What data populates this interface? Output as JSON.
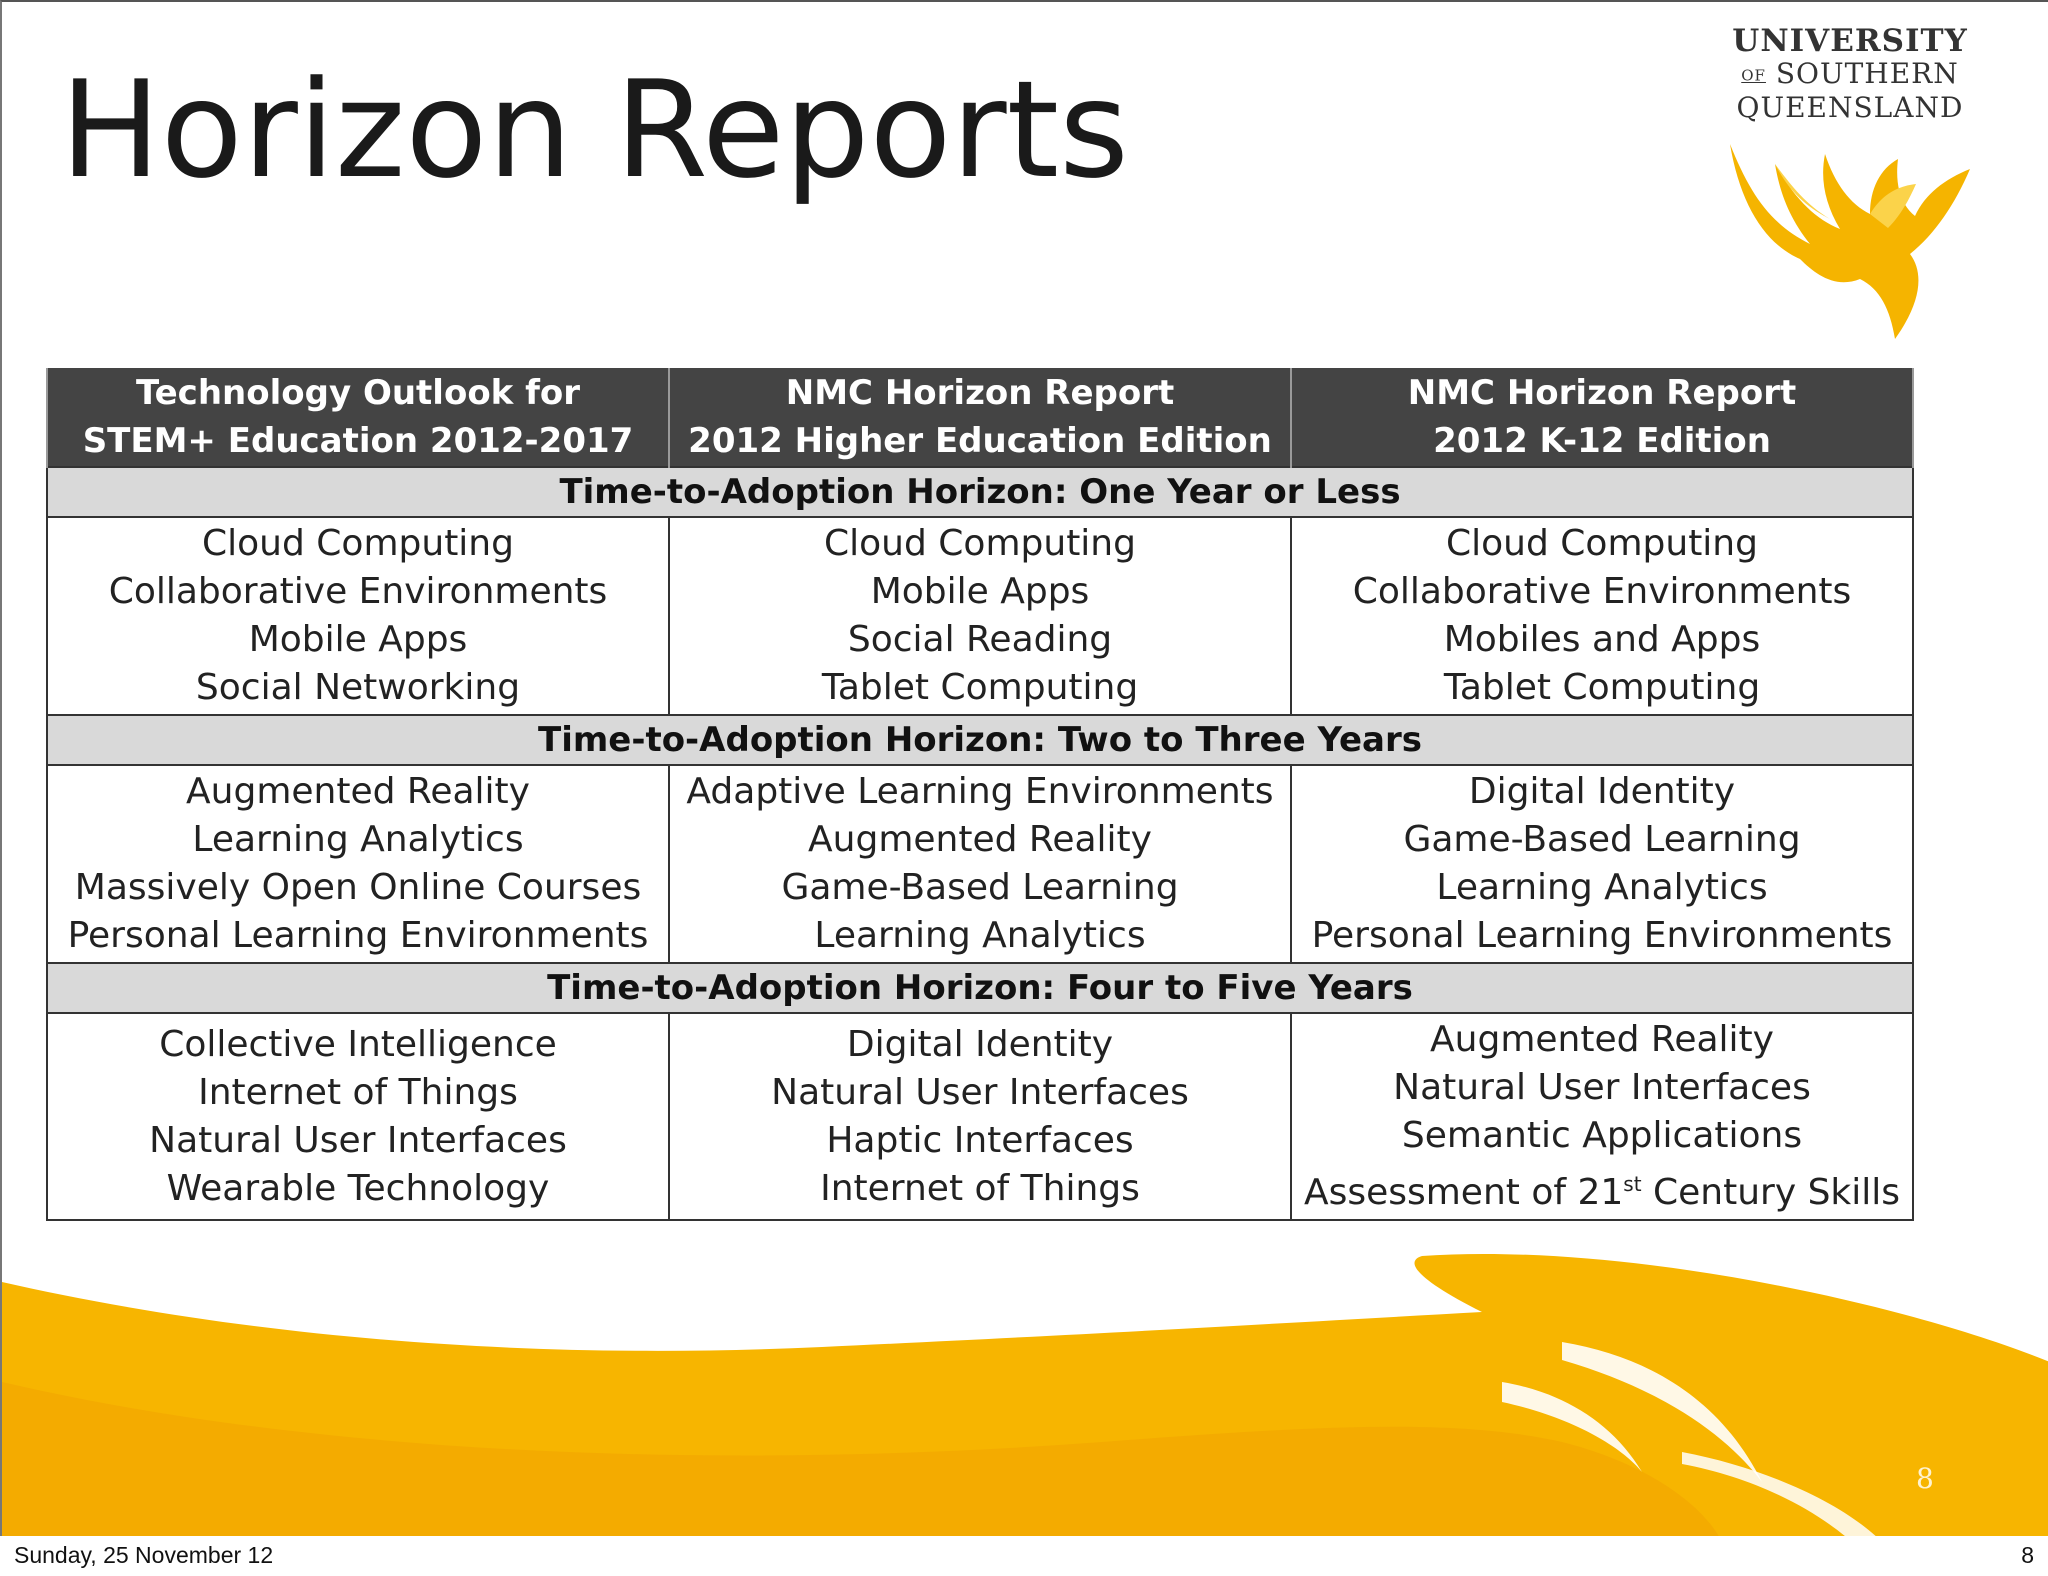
{
  "slide": {
    "title": "Horizon Reports",
    "number": "8"
  },
  "logo": {
    "line1": "UNIVERSITY",
    "line2_of": "OF",
    "line2": "SOUTHERN",
    "line3": "QUEENSLAND",
    "colors": {
      "gold": "#F5B400",
      "gold_light": "#FBD34A"
    }
  },
  "table": {
    "headers": [
      [
        "Technology Outlook for",
        "STEM+ Education 2012-2017"
      ],
      [
        "NMC Horizon Report",
        "2012 Higher Education Edition"
      ],
      [
        "NMC Horizon Report",
        "2012 K-12 Edition"
      ]
    ],
    "bands": [
      {
        "label": "Time-to-Adoption Horizon: One Year or Less",
        "columns": [
          [
            "Cloud Computing",
            "Collaborative Environments",
            "Mobile Apps",
            "Social Networking"
          ],
          [
            "Cloud Computing",
            "Mobile Apps",
            "Social Reading",
            "Tablet Computing"
          ],
          [
            "Cloud Computing",
            "Collaborative Environments",
            "Mobiles and Apps",
            "Tablet Computing"
          ]
        ]
      },
      {
        "label": "Time-to-Adoption Horizon: Two to Three Years",
        "columns": [
          [
            "Augmented Reality",
            "Learning Analytics",
            "Massively Open Online Courses",
            "Personal Learning Environments"
          ],
          [
            "Adaptive Learning Environments",
            "Augmented Reality",
            "Game-Based Learning",
            "Learning Analytics"
          ],
          [
            "Digital Identity",
            "Game-Based Learning",
            "Learning Analytics",
            "Personal Learning Environments"
          ]
        ]
      },
      {
        "label": "Time-to-Adoption Horizon: Four to Five Years",
        "columns": [
          [
            "Collective Intelligence",
            "Internet of Things",
            "Natural User Interfaces",
            "Wearable Technology"
          ],
          [
            "Digital Identity",
            "Natural User Interfaces",
            "Haptic Interfaces",
            "Internet of Things"
          ],
          [
            "Augmented Reality",
            "Natural User Interfaces",
            "Semantic Applications",
            "Assessment of 21",
            "st",
            " Century Skills"
          ]
        ]
      }
    ]
  },
  "footer": {
    "date": "Sunday, 25 November 12",
    "page": "8"
  },
  "theme": {
    "header_bg": "#444444",
    "band_bg": "#D9D9D9",
    "swoosh_gold": "#F5B400"
  }
}
